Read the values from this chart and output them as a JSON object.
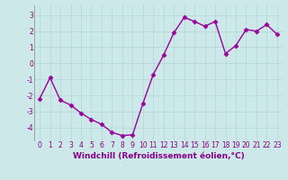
{
  "x": [
    0,
    1,
    2,
    3,
    4,
    5,
    6,
    7,
    8,
    9,
    10,
    11,
    12,
    13,
    14,
    15,
    16,
    17,
    18,
    19,
    20,
    21,
    22,
    23
  ],
  "y": [
    -2.2,
    -0.9,
    -2.3,
    -2.6,
    -3.1,
    -3.5,
    -3.8,
    -4.3,
    -4.5,
    -4.45,
    -2.5,
    -0.7,
    0.5,
    1.9,
    2.85,
    2.6,
    2.3,
    2.6,
    0.6,
    1.1,
    2.1,
    2.0,
    2.4,
    1.8
  ],
  "line_color": "#990099",
  "marker": "D",
  "markersize": 2.5,
  "linewidth": 1.0,
  "xlabel": "Windchill (Refroidissement éolien,°C)",
  "xlabel_fontsize": 6.5,
  "xlim": [
    -0.5,
    23.5
  ],
  "ylim": [
    -4.8,
    3.6
  ],
  "yticks": [
    -4,
    -3,
    -2,
    -1,
    0,
    1,
    2,
    3
  ],
  "xticks": [
    0,
    1,
    2,
    3,
    4,
    5,
    6,
    7,
    8,
    9,
    10,
    11,
    12,
    13,
    14,
    15,
    16,
    17,
    18,
    19,
    20,
    21,
    22,
    23
  ],
  "grid_color": "#b0d8d8",
  "bg_color": "#cce8e8",
  "tick_fontsize": 5.5,
  "tick_color": "#880088"
}
